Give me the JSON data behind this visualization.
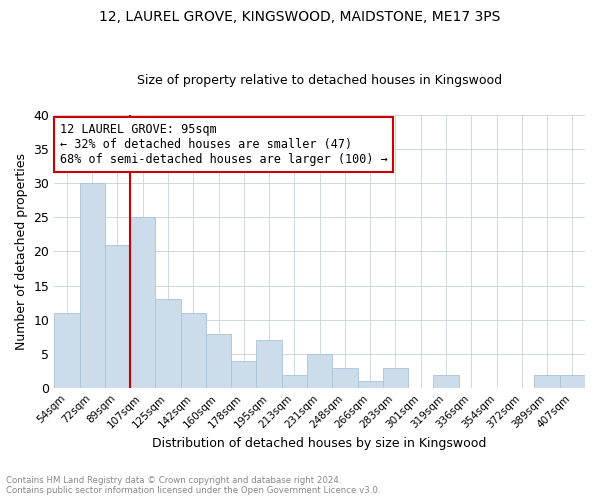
{
  "title": "12, LAUREL GROVE, KINGSWOOD, MAIDSTONE, ME17 3PS",
  "subtitle": "Size of property relative to detached houses in Kingswood",
  "xlabel": "Distribution of detached houses by size in Kingswood",
  "ylabel": "Number of detached properties",
  "footer_line1": "Contains HM Land Registry data © Crown copyright and database right 2024.",
  "footer_line2": "Contains public sector information licensed under the Open Government Licence v3.0.",
  "bin_labels": [
    "54sqm",
    "72sqm",
    "89sqm",
    "107sqm",
    "125sqm",
    "142sqm",
    "160sqm",
    "178sqm",
    "195sqm",
    "213sqm",
    "231sqm",
    "248sqm",
    "266sqm",
    "283sqm",
    "301sqm",
    "319sqm",
    "336sqm",
    "354sqm",
    "372sqm",
    "389sqm",
    "407sqm"
  ],
  "bar_values": [
    11,
    30,
    21,
    25,
    13,
    11,
    8,
    4,
    7,
    2,
    5,
    3,
    1,
    3,
    0,
    2,
    0,
    0,
    0,
    2,
    2
  ],
  "bar_color": "#ccdcea",
  "bar_edge_color": "#a8c4d8",
  "vline_color": "#cc0000",
  "ylim": [
    0,
    40
  ],
  "yticks": [
    0,
    5,
    10,
    15,
    20,
    25,
    30,
    35,
    40
  ],
  "annotation_line1": "12 LAUREL GROVE: 95sqm",
  "annotation_line2": "← 32% of detached houses are smaller (47)",
  "annotation_line3": "68% of semi-detached houses are larger (100) →",
  "annotation_box_color": "#ffffff",
  "annotation_box_edge": "#cc0000",
  "background_color": "#ffffff",
  "grid_color": "#d0d8e0"
}
